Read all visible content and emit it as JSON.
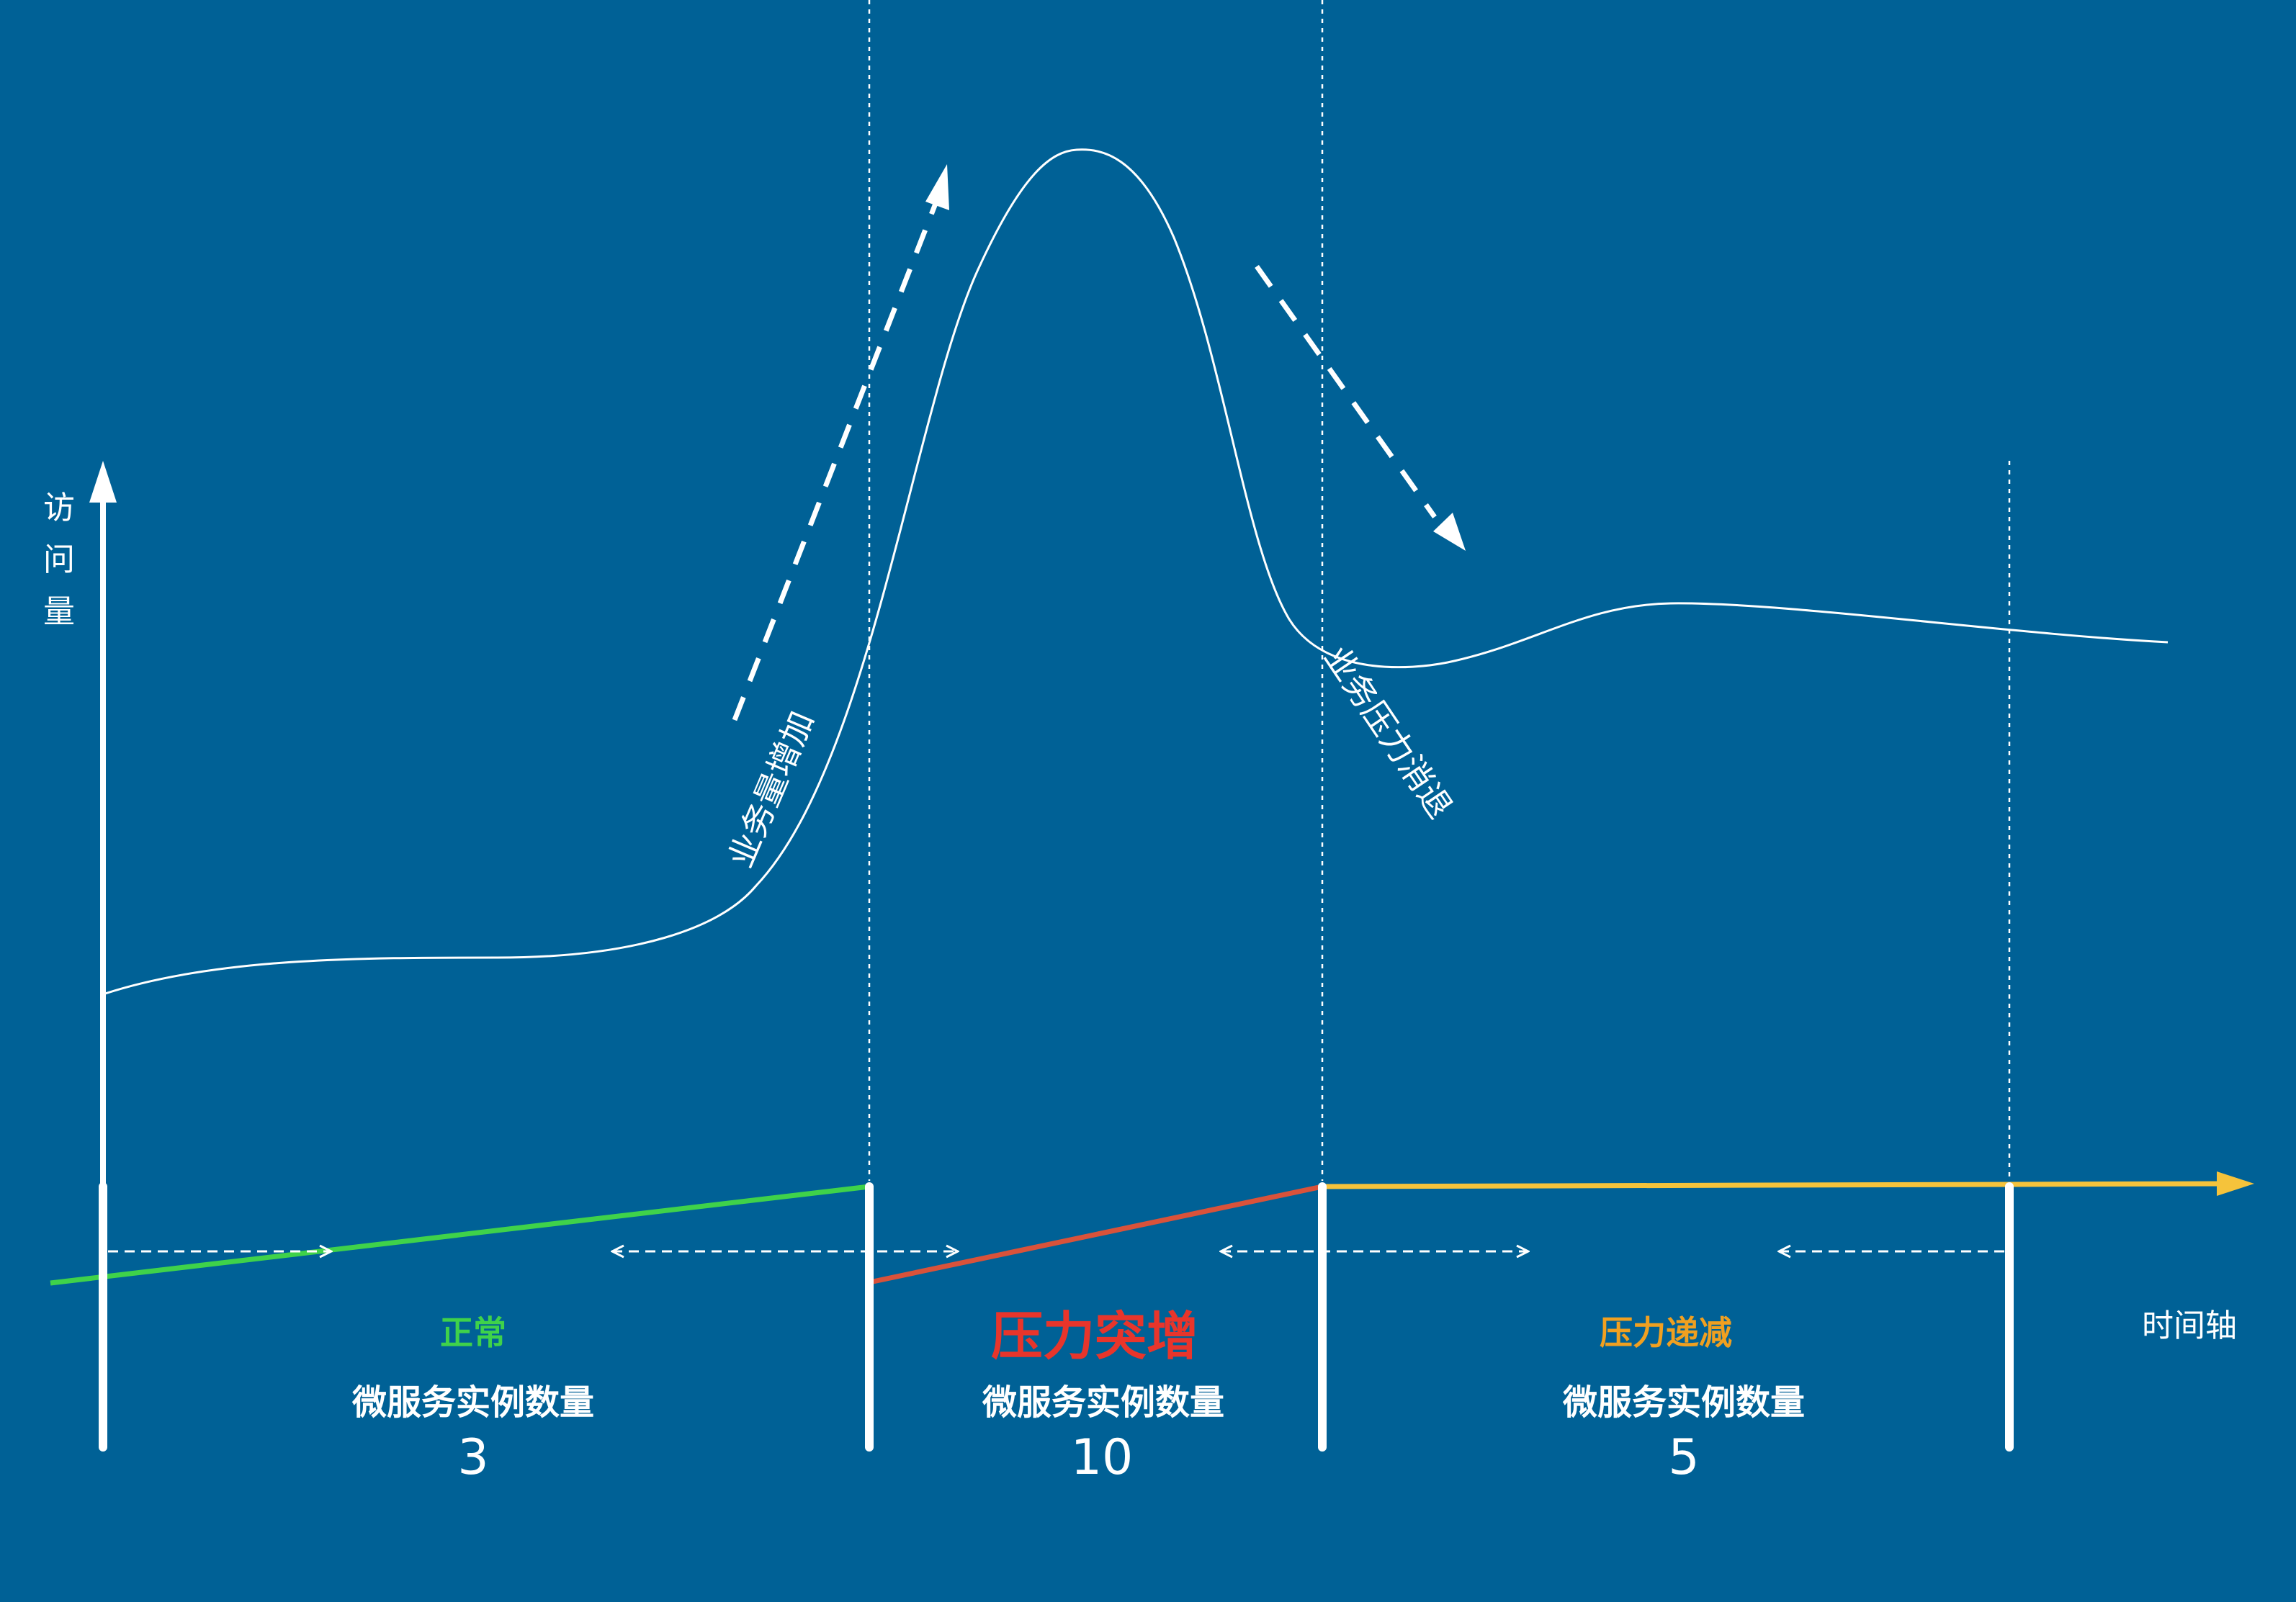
{
  "axes": {
    "y_label": "访\n问\n量",
    "x_label": "时间轴"
  },
  "annotations": {
    "rise": "业务量增加",
    "fall": "业务压力消退"
  },
  "phases": [
    {
      "title": "正常",
      "subtitle": "微服务实例数量",
      "count": "3",
      "color": "#3fd24a"
    },
    {
      "title": "压力突增",
      "subtitle": "微服务实例数量",
      "count": "10",
      "color": "#e8352b"
    },
    {
      "title": "压力递减",
      "subtitle": "微服务实例数量",
      "count": "5",
      "color": "#f0a020"
    }
  ],
  "colors": {
    "background": "#006196",
    "curve": "#ffffff",
    "normal_line": "#3fd24a",
    "surge_line": "#d9523a",
    "decline_line": "#f5c33b"
  }
}
